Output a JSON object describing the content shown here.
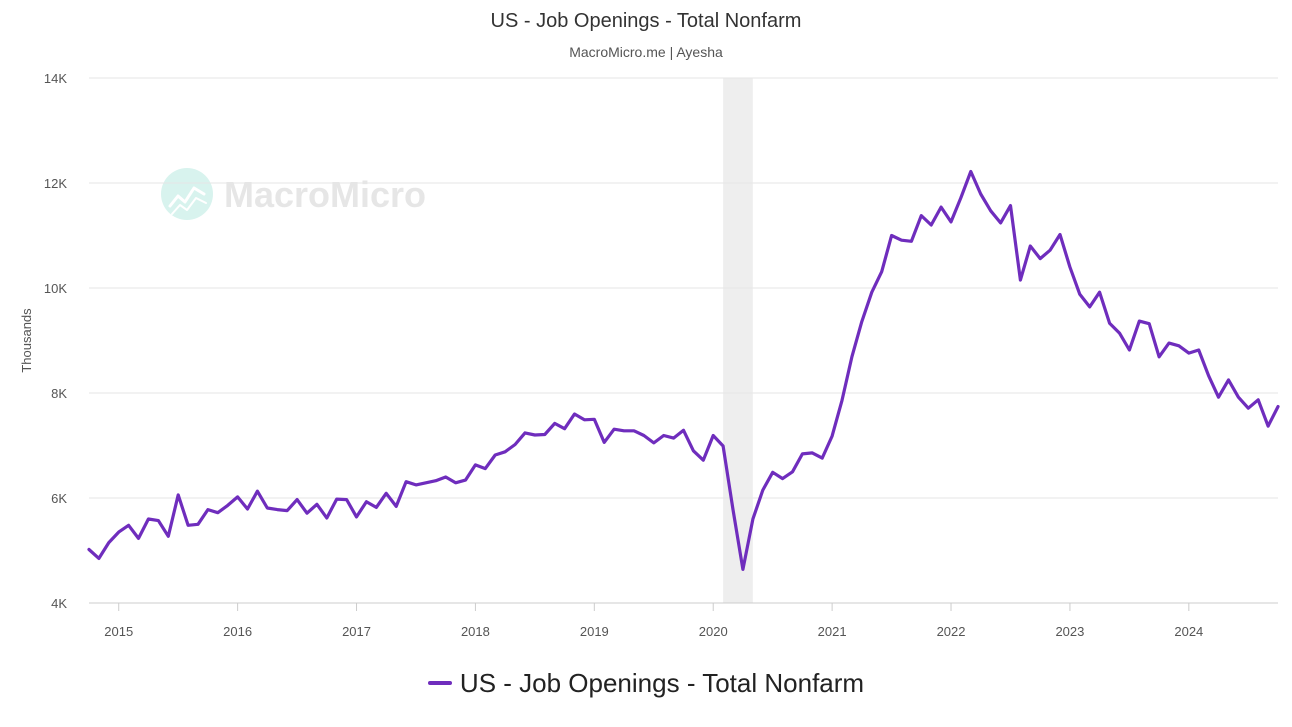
{
  "chart_data": {
    "type": "line",
    "title": "US - Job Openings - Total Nonfarm",
    "subtitle": "MacroMicro.me | Ayesha",
    "watermark": "MacroMicro",
    "ylabel": "Thousands",
    "xlabel": "",
    "ylim": [
      4000,
      14000
    ],
    "yticks": [
      4000,
      6000,
      8000,
      10000,
      12000,
      14000
    ],
    "ytick_labels": [
      "4K",
      "6K",
      "8K",
      "10K",
      "12K",
      "14K"
    ],
    "xlim": [
      2014.75,
      2024.75
    ],
    "xticks": [
      2015,
      2016,
      2017,
      2018,
      2019,
      2020,
      2021,
      2022,
      2023,
      2024
    ],
    "xtick_labels": [
      "2015",
      "2016",
      "2017",
      "2018",
      "2019",
      "2020",
      "2021",
      "2022",
      "2023",
      "2024"
    ],
    "grid": true,
    "legend_position": "bottom-center",
    "recession_shading": {
      "start": 2020.083,
      "end": 2020.333,
      "color": "#eeeeee"
    },
    "series": [
      {
        "name": "US - Job Openings - Total Nonfarm",
        "color": "#6f2dbd",
        "start": 2014.75,
        "step": 0.0833333,
        "values": [
          5020,
          4850,
          5150,
          5350,
          5480,
          5230,
          5600,
          5570,
          5270,
          6060,
          5480,
          5500,
          5780,
          5720,
          5860,
          6020,
          5790,
          6130,
          5810,
          5780,
          5760,
          5970,
          5710,
          5880,
          5620,
          5980,
          5970,
          5640,
          5930,
          5820,
          6090,
          5840,
          6310,
          6250,
          6290,
          6330,
          6400,
          6290,
          6340,
          6630,
          6560,
          6820,
          6880,
          7020,
          7240,
          7200,
          7210,
          7420,
          7320,
          7600,
          7490,
          7500,
          7060,
          7310,
          7280,
          7280,
          7190,
          7050,
          7190,
          7140,
          7290,
          6900,
          6720,
          7190,
          6990,
          5780,
          4640,
          5600,
          6150,
          6490,
          6370,
          6500,
          6840,
          6860,
          6760,
          7180,
          7860,
          8690,
          9360,
          9920,
          10310,
          11000,
          10910,
          10890,
          11380,
          11200,
          11540,
          11260,
          11720,
          12220,
          11790,
          11470,
          11240,
          11570,
          10150,
          10800,
          10560,
          10720,
          11020,
          10400,
          9880,
          9640,
          9920,
          9330,
          9140,
          8820,
          9370,
          9320,
          8690,
          8950,
          8900,
          8760,
          8820,
          8330,
          7920,
          8250,
          7920,
          7710,
          7870,
          7370,
          7740
        ]
      }
    ]
  }
}
